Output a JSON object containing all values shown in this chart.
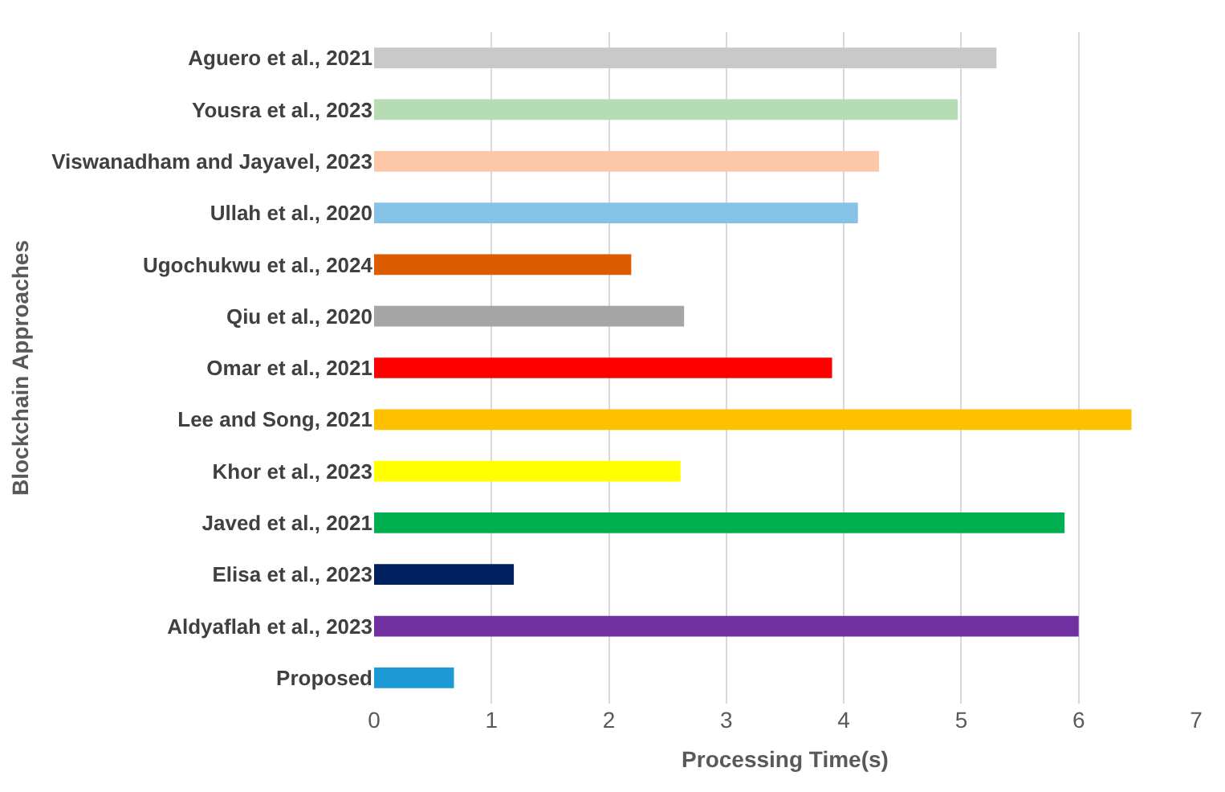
{
  "chart_data": {
    "type": "bar",
    "orientation": "horizontal",
    "xlabel": "Processing Time(s)",
    "ylabel": "Blockchain Approaches",
    "categories": [
      "Aguero et al., 2021",
      "Yousra et al., 2023",
      "Viswanadham and Jayavel, 2023",
      "Ullah et al., 2020",
      "Ugochukwu et al., 2024",
      "Qiu et al., 2020",
      "Omar et al., 2021",
      "Lee and Song, 2021",
      "Khor et al., 2023",
      "Javed et al., 2021",
      "Elisa et al., 2023",
      "Aldyaflah et al., 2023",
      "Proposed"
    ],
    "values": [
      5.3,
      4.97,
      4.3,
      4.12,
      2.19,
      2.64,
      3.9,
      6.45,
      2.61,
      5.88,
      1.19,
      6.0,
      0.68
    ],
    "colors": [
      "#c9c9c9",
      "#b5dcb2",
      "#fdc8a8",
      "#86c1e6",
      "#dd5c00",
      "#a5a5a5",
      "#ff0000",
      "#ffc000",
      "#ffff00",
      "#00b050",
      "#002060",
      "#7030a0",
      "#1c9ad6"
    ],
    "xlim": [
      0,
      7
    ],
    "xticks": [
      0,
      1,
      2,
      3,
      4,
      5,
      6,
      7
    ],
    "grid": "x"
  }
}
